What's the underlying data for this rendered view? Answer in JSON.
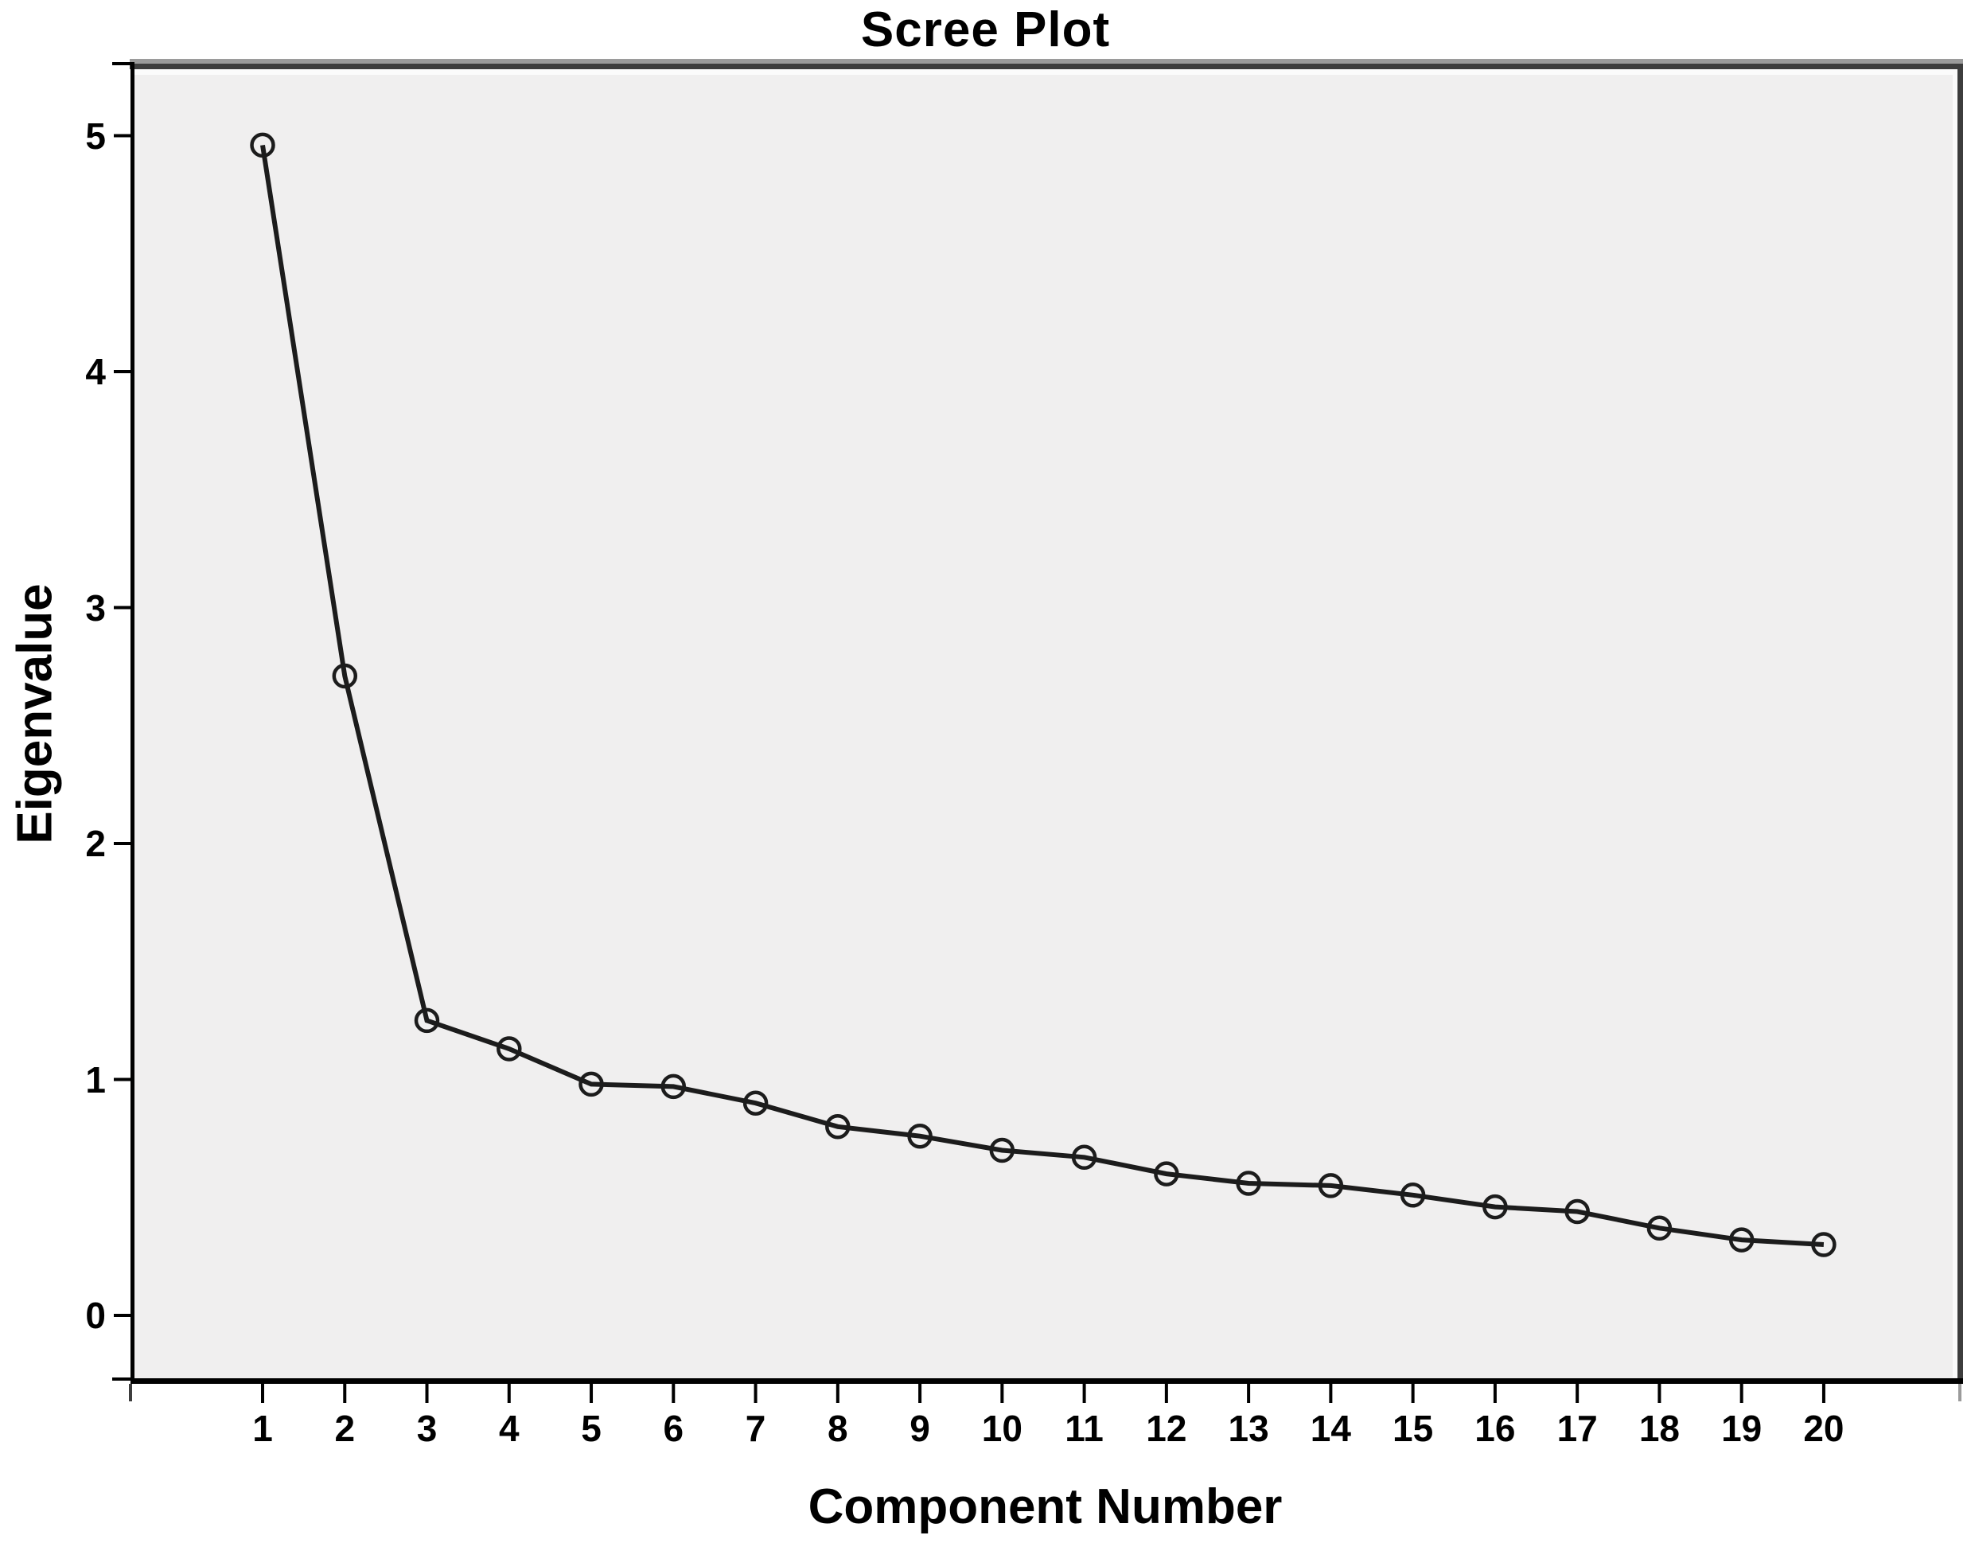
{
  "figure": {
    "title": "Scree Plot",
    "x_axis": {
      "label": "Component Number"
    },
    "y_axis": {
      "label": "Eigenvalue"
    }
  },
  "chart_data": {
    "type": "line",
    "title": "Scree Plot",
    "xlabel": "Component Number",
    "ylabel": "Eigenvalue",
    "x": [
      1,
      2,
      3,
      4,
      5,
      6,
      7,
      8,
      9,
      10,
      11,
      12,
      13,
      14,
      15,
      16,
      17,
      18,
      19,
      20
    ],
    "values": [
      4.96,
      2.71,
      1.25,
      1.13,
      0.98,
      0.97,
      0.9,
      0.8,
      0.76,
      0.7,
      0.67,
      0.6,
      0.56,
      0.55,
      0.51,
      0.46,
      0.44,
      0.37,
      0.32,
      0.3
    ],
    "x_ticks": [
      1,
      2,
      3,
      4,
      5,
      6,
      7,
      8,
      9,
      10,
      11,
      12,
      13,
      14,
      15,
      16,
      17,
      18,
      19,
      20
    ],
    "y_ticks": [
      0,
      1,
      2,
      3,
      4,
      5
    ],
    "xlim": [
      -0.6,
      21.6
    ],
    "ylim": [
      -0.28,
      5.29
    ],
    "grid": false,
    "legend": false,
    "marker": "open-circle",
    "series_name": "Eigenvalue",
    "colors": {
      "line": "#1c1c1c",
      "marker_stroke": "#1c1c1c",
      "plot_background": "#f0efef",
      "frame_dark": "#3d3d3d",
      "frame_gray": "#9b9b9b",
      "frame_highlight": "#fbfbfb",
      "axis": "#000000",
      "text": "#000000",
      "page_background": "#ffffff"
    }
  }
}
